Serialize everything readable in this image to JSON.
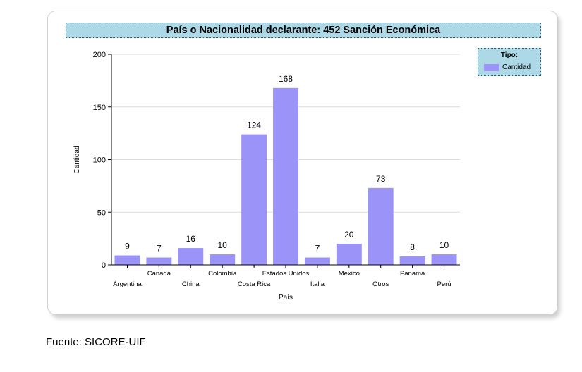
{
  "chart_data": {
    "type": "bar",
    "title": "País o Nacionalidad declarante: 452 Sanción Económica",
    "xlabel": "País",
    "ylabel": "Cantidad",
    "ylim": [
      0,
      200
    ],
    "yticks": [
      0,
      50,
      100,
      150,
      200
    ],
    "grid": true,
    "legend": {
      "title": "Tipo:",
      "placement": "top-right"
    },
    "categories": [
      "Argentina",
      "Canadá",
      "China",
      "Colombia",
      "Costa Rica",
      "Estados Unidos",
      "Italia",
      "México",
      "Otros",
      "Panamá",
      "Perú"
    ],
    "series": [
      {
        "name": "Cantidad",
        "values": [
          9,
          7,
          16,
          10,
          124,
          168,
          7,
          20,
          73,
          8,
          10
        ]
      }
    ],
    "bar_color": "#9b93f8"
  },
  "source_note": "Fuente: SICORE-UIF"
}
